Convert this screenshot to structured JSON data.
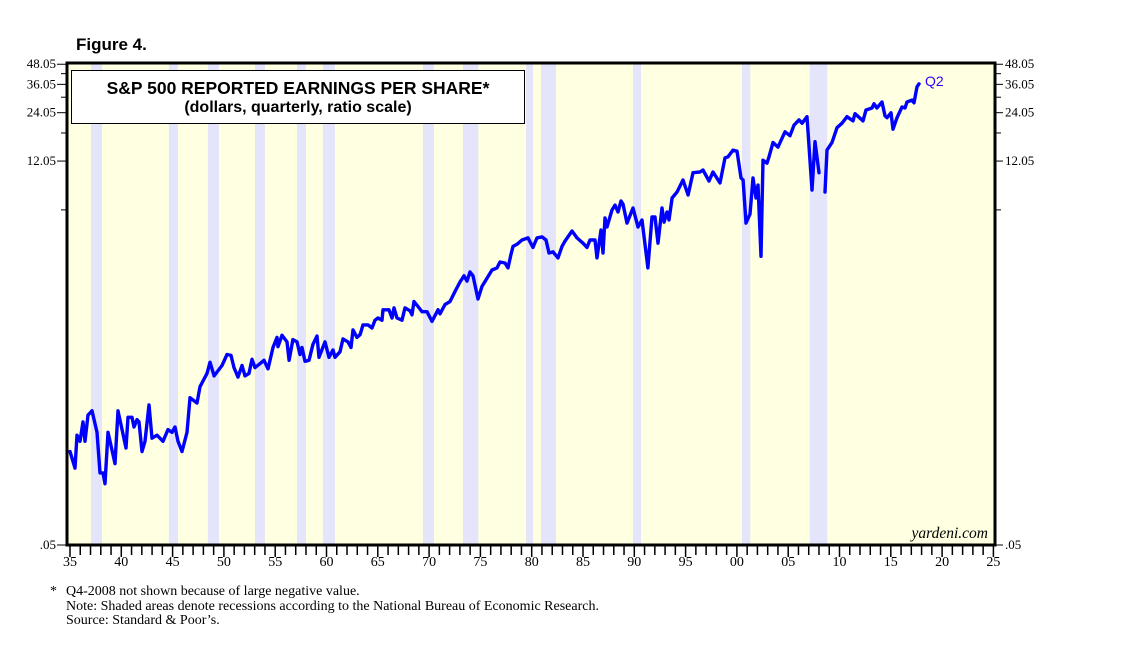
{
  "figure_label": "Figure 4.",
  "footnotes": {
    "asterisk": "*",
    "line1": "Q4-2008 not shown because of large negative value.",
    "line2": "Note: Shaded areas denote recessions according to the National Bureau of Economic Research.",
    "line3": "Source: Standard & Poor’s."
  },
  "colors": {
    "line": "#0000ff",
    "background": "#ffffe2",
    "recession": "#e4e4fa",
    "label": "#3300ff"
  },
  "chart_data": {
    "type": "line",
    "title": "S&P 500 REPORTED EARNINGS PER SHARE*",
    "subtitle": "(dollars, quarterly, ratio scale)",
    "xlabel": "",
    "ylabel": "",
    "xlim": [
      1935,
      2025
    ],
    "ylim": [
      0.05,
      48.05
    ],
    "yscale": "log",
    "grid": false,
    "watermark": "yardeni.com",
    "end_annotation": "Q2",
    "y_ticks": [
      {
        "value": 48.05,
        "label": "48.05"
      },
      {
        "value": 36.05,
        "label": "36.05"
      },
      {
        "value": 24.05,
        "label": "24.05"
      },
      {
        "value": 12.05,
        "label": "12.05"
      },
      {
        "value": 0.05,
        "label": ".05"
      }
    ],
    "y_minor_ticks": [
      6,
      18,
      30,
      42
    ],
    "x_tick_labels": [
      "35",
      "40",
      "45",
      "50",
      "55",
      "60",
      "65",
      "70",
      "75",
      "80",
      "85",
      "90",
      "95",
      "00",
      "05",
      "10",
      "15",
      "20",
      "25"
    ],
    "recessions": [
      [
        1937.05,
        1938.12
      ],
      [
        1944.64,
        1945.52
      ],
      [
        1948.44,
        1949.52
      ],
      [
        1953.03,
        1954.0
      ],
      [
        1957.12,
        1958.0
      ],
      [
        1959.65,
        1960.82
      ],
      [
        1969.4,
        1970.47
      ],
      [
        1973.3,
        1974.8
      ],
      [
        1979.45,
        1980.13
      ],
      [
        1980.91,
        1982.37
      ],
      [
        1989.87,
        1990.65
      ],
      [
        2000.5,
        2001.3
      ],
      [
        2007.1,
        2008.8
      ]
    ],
    "series": [
      {
        "name": "S&P 500 reported EPS",
        "points": [
          [
            1935.0,
            0.19
          ],
          [
            1935.49,
            0.15
          ],
          [
            1935.68,
            0.24
          ],
          [
            1935.97,
            0.22
          ],
          [
            1936.27,
            0.29
          ],
          [
            1936.46,
            0.22
          ],
          [
            1936.75,
            0.32
          ],
          [
            1937.14,
            0.34
          ],
          [
            1937.63,
            0.25
          ],
          [
            1937.92,
            0.14
          ],
          [
            1938.22,
            0.14
          ],
          [
            1938.41,
            0.12
          ],
          [
            1938.7,
            0.25
          ],
          [
            1939.39,
            0.16
          ],
          [
            1939.68,
            0.34
          ],
          [
            1940.46,
            0.2
          ],
          [
            1940.65,
            0.31
          ],
          [
            1941.04,
            0.31
          ],
          [
            1941.24,
            0.27
          ],
          [
            1941.53,
            0.3
          ],
          [
            1941.73,
            0.29
          ],
          [
            1942.02,
            0.19
          ],
          [
            1942.31,
            0.22
          ],
          [
            1942.7,
            0.37
          ],
          [
            1942.99,
            0.23
          ],
          [
            1943.48,
            0.24
          ],
          [
            1944.06,
            0.22
          ],
          [
            1944.55,
            0.26
          ],
          [
            1944.94,
            0.25
          ],
          [
            1945.23,
            0.27
          ],
          [
            1945.53,
            0.22
          ],
          [
            1945.92,
            0.19
          ],
          [
            1946.4,
            0.25
          ],
          [
            1946.7,
            0.41
          ],
          [
            1947.38,
            0.38
          ],
          [
            1947.67,
            0.48
          ],
          [
            1948.35,
            0.58
          ],
          [
            1948.65,
            0.68
          ],
          [
            1949.04,
            0.56
          ],
          [
            1949.81,
            0.65
          ],
          [
            1950.3,
            0.76
          ],
          [
            1950.69,
            0.75
          ],
          [
            1950.98,
            0.63
          ],
          [
            1951.37,
            0.55
          ],
          [
            1951.76,
            0.65
          ],
          [
            1952.06,
            0.56
          ],
          [
            1952.45,
            0.58
          ],
          [
            1952.74,
            0.71
          ],
          [
            1953.03,
            0.63
          ],
          [
            1953.42,
            0.66
          ],
          [
            1953.91,
            0.7
          ],
          [
            1954.3,
            0.62
          ],
          [
            1954.79,
            0.84
          ],
          [
            1955.18,
            0.97
          ],
          [
            1955.27,
            0.85
          ],
          [
            1955.66,
            1.0
          ],
          [
            1956.15,
            0.91
          ],
          [
            1956.35,
            0.7
          ],
          [
            1956.73,
            0.94
          ],
          [
            1957.12,
            0.91
          ],
          [
            1957.42,
            0.76
          ],
          [
            1957.61,
            0.84
          ],
          [
            1957.9,
            0.69
          ],
          [
            1958.29,
            0.7
          ],
          [
            1958.68,
            0.88
          ],
          [
            1959.07,
            0.99
          ],
          [
            1959.27,
            0.73
          ],
          [
            1959.85,
            0.91
          ],
          [
            1960.24,
            0.73
          ],
          [
            1960.63,
            0.81
          ],
          [
            1960.83,
            0.73
          ],
          [
            1961.32,
            0.79
          ],
          [
            1961.61,
            0.95
          ],
          [
            1962.1,
            0.91
          ],
          [
            1962.39,
            0.84
          ],
          [
            1962.58,
            1.08
          ],
          [
            1962.97,
            0.97
          ],
          [
            1963.27,
            1.01
          ],
          [
            1963.56,
            1.16
          ],
          [
            1964.04,
            1.16
          ],
          [
            1964.43,
            1.11
          ],
          [
            1964.73,
            1.24
          ],
          [
            1965.02,
            1.28
          ],
          [
            1965.41,
            1.24
          ],
          [
            1965.51,
            1.44
          ],
          [
            1966.09,
            1.44
          ],
          [
            1966.38,
            1.28
          ],
          [
            1966.58,
            1.48
          ],
          [
            1966.87,
            1.28
          ],
          [
            1967.36,
            1.24
          ],
          [
            1967.65,
            1.48
          ],
          [
            1968.14,
            1.42
          ],
          [
            1968.33,
            1.34
          ],
          [
            1968.53,
            1.62
          ],
          [
            1968.92,
            1.51
          ],
          [
            1969.31,
            1.4
          ],
          [
            1969.8,
            1.4
          ],
          [
            1970.28,
            1.22
          ],
          [
            1970.87,
            1.44
          ],
          [
            1971.06,
            1.36
          ],
          [
            1971.55,
            1.55
          ],
          [
            1972.04,
            1.62
          ],
          [
            1972.52,
            1.87
          ],
          [
            1973.01,
            2.14
          ],
          [
            1973.4,
            2.34
          ],
          [
            1973.69,
            2.17
          ],
          [
            1973.99,
            2.47
          ],
          [
            1974.28,
            2.34
          ],
          [
            1974.77,
            1.68
          ],
          [
            1975.16,
            2.01
          ],
          [
            1975.64,
            2.26
          ],
          [
            1976.13,
            2.54
          ],
          [
            1976.62,
            2.62
          ],
          [
            1976.91,
            2.85
          ],
          [
            1977.4,
            2.81
          ],
          [
            1977.69,
            2.62
          ],
          [
            1977.98,
            3.18
          ],
          [
            1978.18,
            3.56
          ],
          [
            1978.57,
            3.67
          ],
          [
            1979.05,
            3.9
          ],
          [
            1979.64,
            4.02
          ],
          [
            1980.13,
            3.51
          ],
          [
            1980.52,
            4.02
          ],
          [
            1981.0,
            4.08
          ],
          [
            1981.39,
            3.9
          ],
          [
            1981.69,
            3.24
          ],
          [
            1982.08,
            3.29
          ],
          [
            1982.56,
            3.02
          ],
          [
            1982.95,
            3.56
          ],
          [
            1983.25,
            3.84
          ],
          [
            1983.93,
            4.44
          ],
          [
            1984.42,
            4.02
          ],
          [
            1985.0,
            3.73
          ],
          [
            1985.39,
            3.51
          ],
          [
            1985.68,
            3.9
          ],
          [
            1986.17,
            3.9
          ],
          [
            1986.36,
            3.02
          ],
          [
            1986.75,
            4.5
          ],
          [
            1986.95,
            3.24
          ],
          [
            1987.14,
            5.34
          ],
          [
            1987.34,
            4.7
          ],
          [
            1987.83,
            5.99
          ],
          [
            1988.12,
            6.42
          ],
          [
            1988.41,
            5.82
          ],
          [
            1988.7,
            6.81
          ],
          [
            1988.9,
            6.52
          ],
          [
            1989.29,
            4.97
          ],
          [
            1989.87,
            6.16
          ],
          [
            1990.36,
            4.7
          ],
          [
            1990.75,
            5.19
          ],
          [
            1991.33,
            2.62
          ],
          [
            1991.73,
            5.42
          ],
          [
            1992.02,
            5.42
          ],
          [
            1992.31,
            3.73
          ],
          [
            1992.7,
            6.16
          ],
          [
            1992.9,
            5.04
          ],
          [
            1993.19,
            5.82
          ],
          [
            1993.38,
            5.19
          ],
          [
            1993.68,
            7.11
          ],
          [
            1994.16,
            7.74
          ],
          [
            1994.75,
            9.2
          ],
          [
            1995.24,
            7.42
          ],
          [
            1995.72,
            10.2
          ],
          [
            1996.4,
            10.3
          ],
          [
            1996.7,
            10.6
          ],
          [
            1997.28,
            9.07
          ],
          [
            1997.67,
            10.3
          ],
          [
            1998.35,
            8.82
          ],
          [
            1998.84,
            12.6
          ],
          [
            1999.13,
            12.8
          ],
          [
            1999.62,
            14.1
          ],
          [
            2000.01,
            13.9
          ],
          [
            2000.4,
            9.47
          ],
          [
            2000.6,
            9.2
          ],
          [
            2000.89,
            4.97
          ],
          [
            2001.28,
            5.65
          ],
          [
            2001.57,
            9.47
          ],
          [
            2001.86,
            7.11
          ],
          [
            2002.06,
            8.55
          ],
          [
            2002.35,
            3.09
          ],
          [
            2002.54,
            12.2
          ],
          [
            2002.93,
            11.7
          ],
          [
            2003.13,
            12.8
          ],
          [
            2003.52,
            15.7
          ],
          [
            2004.01,
            14.7
          ],
          [
            2004.69,
            18.3
          ],
          [
            2005.18,
            17.3
          ],
          [
            2005.57,
            20.1
          ],
          [
            2006.05,
            21.7
          ],
          [
            2006.35,
            20.7
          ],
          [
            2006.83,
            22.7
          ],
          [
            2007.32,
            7.97
          ],
          [
            2007.61,
            15.9
          ],
          [
            2008.0,
            10.2
          ],
          [
            2008.3,
            null
          ],
          [
            2008.59,
            7.74
          ],
          [
            2008.78,
            14.1
          ],
          [
            2009.27,
            15.7
          ],
          [
            2009.76,
            19.4
          ],
          [
            2010.24,
            20.7
          ],
          [
            2010.73,
            22.7
          ],
          [
            2011.32,
            21.4
          ],
          [
            2011.51,
            23.7
          ],
          [
            2012.29,
            21.4
          ],
          [
            2012.58,
            25.0
          ],
          [
            2013.17,
            25.7
          ],
          [
            2013.36,
            27.3
          ],
          [
            2013.65,
            25.7
          ],
          [
            2014.14,
            28.0
          ],
          [
            2014.43,
            23.0
          ],
          [
            2014.63,
            22.4
          ],
          [
            2015.02,
            24.0
          ],
          [
            2015.21,
            19.0
          ],
          [
            2015.6,
            22.4
          ],
          [
            2016.09,
            26.1
          ],
          [
            2016.38,
            25.7
          ],
          [
            2016.58,
            28.0
          ],
          [
            2017.07,
            28.8
          ],
          [
            2017.26,
            27.7
          ],
          [
            2017.55,
            34.8
          ],
          [
            2017.75,
            36.3
          ]
        ]
      }
    ]
  }
}
